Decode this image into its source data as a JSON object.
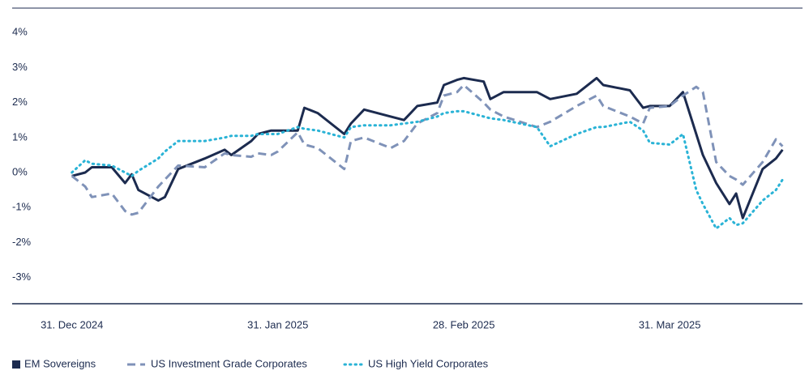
{
  "chart_data": {
    "type": "line",
    "x": [
      "2024-12-31",
      "2025-01-02",
      "2025-01-03",
      "2025-01-06",
      "2025-01-08",
      "2025-01-09",
      "2025-01-10",
      "2025-01-13",
      "2025-01-14",
      "2025-01-16",
      "2025-01-20",
      "2025-01-23",
      "2025-01-24",
      "2025-01-27",
      "2025-01-28",
      "2025-01-30",
      "2025-01-31",
      "2025-02-03",
      "2025-02-04",
      "2025-02-06",
      "2025-02-10",
      "2025-02-11",
      "2025-02-13",
      "2025-02-17",
      "2025-02-19",
      "2025-02-21",
      "2025-02-24",
      "2025-02-25",
      "2025-02-27",
      "2025-02-28",
      "2025-03-03",
      "2025-03-04",
      "2025-03-06",
      "2025-03-11",
      "2025-03-13",
      "2025-03-17",
      "2025-03-20",
      "2025-03-21",
      "2025-03-25",
      "2025-03-27",
      "2025-03-28",
      "2025-03-31",
      "2025-04-02",
      "2025-04-04",
      "2025-04-05",
      "2025-04-07",
      "2025-04-09",
      "2025-04-10",
      "2025-04-11",
      "2025-04-14",
      "2025-04-16",
      "2025-04-17"
    ],
    "series": [
      {
        "name": "EM Sovereigns",
        "color": "#1c2b4f",
        "style": "solid",
        "values": [
          -0.1,
          0.0,
          0.15,
          0.15,
          -0.3,
          -0.05,
          -0.5,
          -0.8,
          -0.7,
          0.1,
          0.4,
          0.65,
          0.5,
          0.9,
          1.1,
          1.2,
          1.2,
          1.2,
          1.85,
          1.7,
          1.1,
          1.4,
          1.8,
          1.6,
          1.5,
          1.9,
          2.0,
          2.5,
          2.65,
          2.7,
          2.6,
          2.1,
          2.3,
          2.3,
          2.1,
          2.25,
          2.7,
          2.5,
          2.35,
          1.85,
          1.9,
          1.9,
          2.3,
          1.1,
          0.5,
          -0.3,
          -0.9,
          -0.6,
          -1.3,
          0.1,
          0.4,
          0.65
        ]
      },
      {
        "name": "US Investment Grade Corporates",
        "color": "#7f92b8",
        "style": "dashed",
        "values": [
          -0.1,
          -0.4,
          -0.7,
          -0.6,
          -1.1,
          -1.2,
          -1.15,
          -0.4,
          -0.2,
          0.2,
          0.15,
          0.55,
          0.5,
          0.45,
          0.55,
          0.5,
          0.6,
          1.15,
          0.8,
          0.7,
          0.1,
          0.9,
          1.0,
          0.7,
          0.9,
          1.4,
          1.7,
          2.2,
          2.3,
          2.5,
          2.0,
          1.8,
          1.6,
          1.3,
          1.45,
          1.9,
          2.2,
          1.9,
          1.6,
          1.4,
          1.85,
          1.9,
          2.2,
          2.45,
          2.3,
          0.3,
          -0.1,
          -0.2,
          -0.35,
          0.3,
          0.95,
          0.75
        ]
      },
      {
        "name": "US High Yield Corporates",
        "color": "#2ab3d6",
        "style": "dotted",
        "values": [
          0.0,
          0.35,
          0.25,
          0.2,
          0.0,
          -0.1,
          0.05,
          0.4,
          0.6,
          0.9,
          0.9,
          1.0,
          1.05,
          1.05,
          1.1,
          1.1,
          1.1,
          1.3,
          1.25,
          1.2,
          1.0,
          1.3,
          1.35,
          1.35,
          1.4,
          1.45,
          1.6,
          1.7,
          1.75,
          1.75,
          1.6,
          1.55,
          1.5,
          1.3,
          0.75,
          1.1,
          1.3,
          1.3,
          1.45,
          1.2,
          0.85,
          0.8,
          1.1,
          -0.5,
          -0.9,
          -1.6,
          -1.3,
          -1.5,
          -1.45,
          -0.8,
          -0.5,
          -0.2
        ]
      }
    ],
    "xlim": [
      "2024-12-22",
      "2025-04-20"
    ],
    "xticks": [
      {
        "value": "2024-12-31",
        "label": "31. Dec 2024"
      },
      {
        "value": "2025-01-31",
        "label": "31. Jan 2025"
      },
      {
        "value": "2025-02-28",
        "label": "28. Feb 2025"
      },
      {
        "value": "2025-03-31",
        "label": "31. Mar 2025"
      }
    ],
    "ylim": [
      -3.75,
      4.7
    ],
    "yticks": [
      {
        "value": 4,
        "label": "4%"
      },
      {
        "value": 3,
        "label": "3%"
      },
      {
        "value": 2,
        "label": "2%"
      },
      {
        "value": 1,
        "label": "1%"
      },
      {
        "value": 0,
        "label": "0%"
      },
      {
        "value": -1,
        "label": "-1%"
      },
      {
        "value": -2,
        "label": "-2%"
      },
      {
        "value": -3,
        "label": "-3%"
      }
    ],
    "grid": false,
    "legend": "bottom-left"
  }
}
